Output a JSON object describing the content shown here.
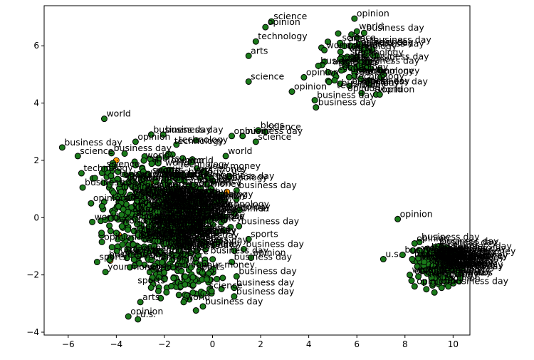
{
  "chart_data": {
    "type": "scatter",
    "title": "",
    "xlabel": "",
    "ylabel": "",
    "xlim": [
      -7,
      10.7
    ],
    "ylim": [
      -4.1,
      7.4
    ],
    "xticks": [
      -6,
      -4,
      -2,
      0,
      2,
      4,
      6,
      8,
      10
    ],
    "yticks": [
      -4,
      -2,
      0,
      2,
      4,
      6
    ],
    "grid": false,
    "legend": "none",
    "colors": {
      "point": "#1a7a1a",
      "point_edge": "#000000",
      "accent_point": "#ff9900",
      "label": "#000000"
    },
    "points": [
      {
        "x": 2.2,
        "y": 6.65,
        "label": "opinion"
      },
      {
        "x": 2.45,
        "y": 6.85,
        "label": "science"
      },
      {
        "x": 1.8,
        "y": 6.15,
        "label": "technology"
      },
      {
        "x": 1.5,
        "y": 5.65,
        "label": "arts"
      },
      {
        "x": 1.5,
        "y": 4.75,
        "label": "science"
      },
      {
        "x": 3.3,
        "y": 4.4,
        "label": "opinion"
      },
      {
        "x": 4.25,
        "y": 4.1,
        "label": "business day"
      },
      {
        "x": 4.3,
        "y": 3.85,
        "label": "business day"
      },
      {
        "x": 3.8,
        "y": 4.9,
        "label": "opinion"
      },
      {
        "x": 4.65,
        "y": 5.85,
        "label": "world"
      },
      {
        "x": 4.4,
        "y": 5.3,
        "label": "business day"
      },
      {
        "x": 5.3,
        "y": 6.1,
        "label": "science"
      },
      {
        "x": 5.9,
        "y": 6.95,
        "label": "opinion"
      },
      {
        "x": 6.0,
        "y": 6.5,
        "label": "world"
      },
      {
        "x": 6.3,
        "y": 6.45,
        "label": "business day"
      },
      {
        "x": 5.8,
        "y": 5.6,
        "label": "technology"
      },
      {
        "x": 6.1,
        "y": 5.3,
        "label": "business day"
      },
      {
        "x": 5.9,
        "y": 4.95,
        "label": "opinion"
      },
      {
        "x": 5.7,
        "y": 4.6,
        "label": "business day"
      },
      {
        "x": 6.2,
        "y": 4.35,
        "label": "u.s."
      },
      {
        "x": 6.8,
        "y": 4.3,
        "label": "world"
      },
      {
        "x": 6.95,
        "y": 4.3,
        "label": "opinion"
      },
      {
        "x": 6.3,
        "y": 5.9,
        "label": "business day"
      },
      {
        "x": 6.5,
        "y": 5.45,
        "label": "business day"
      },
      {
        "x": -4.5,
        "y": 3.45,
        "label": "world"
      },
      {
        "x": -6.25,
        "y": 2.45,
        "label": "business day"
      },
      {
        "x": -5.6,
        "y": 2.15,
        "label": "science"
      },
      {
        "x": -5.45,
        "y": 1.55,
        "label": "technology"
      },
      {
        "x": -5.4,
        "y": 1.05,
        "label": "business day"
      },
      {
        "x": -5.05,
        "y": 0.5,
        "label": "opinion"
      },
      {
        "x": -5.0,
        "y": -0.15,
        "label": "world"
      },
      {
        "x": -4.6,
        "y": -0.85,
        "label": "opinion"
      },
      {
        "x": -4.8,
        "y": -1.55,
        "label": "sports"
      },
      {
        "x": -4.45,
        "y": -1.9,
        "label": "your money"
      },
      {
        "x": -4.5,
        "y": 1.7,
        "label": "science"
      },
      {
        "x": -4.2,
        "y": 2.25,
        "label": "business day"
      },
      {
        "x": -3.95,
        "y": 1.35,
        "label": "technology"
      },
      {
        "x": -3.8,
        "y": 0.9,
        "label": "business day"
      },
      {
        "x": -2.55,
        "y": 2.9,
        "label": "business day"
      },
      {
        "x": -2.05,
        "y": 2.9,
        "label": "business day"
      },
      {
        "x": -3.2,
        "y": 2.65,
        "label": "opinion"
      },
      {
        "x": -1.5,
        "y": 2.55,
        "label": "technology"
      },
      {
        "x": 0.55,
        "y": 2.15,
        "label": "world"
      },
      {
        "x": 0.7,
        "y": 1.45,
        "label": "u.s."
      },
      {
        "x": 1.0,
        "y": 0.95,
        "label": "business day"
      },
      {
        "x": 0.9,
        "y": 0.15,
        "label": "opinion"
      },
      {
        "x": 1.1,
        "y": -0.3,
        "label": "business day"
      },
      {
        "x": 1.5,
        "y": -0.75,
        "label": "sports"
      },
      {
        "x": 1.3,
        "y": -1.1,
        "label": "business day"
      },
      {
        "x": 1.6,
        "y": -1.4,
        "label": "opinion"
      },
      {
        "x": 0.8,
        "y": -1.55,
        "label": "business day"
      },
      {
        "x": 1.0,
        "y": -2.05,
        "label": "business day"
      },
      {
        "x": 0.9,
        "y": -2.45,
        "label": "business day"
      },
      {
        "x": 0.9,
        "y": -2.75,
        "label": "business day"
      },
      {
        "x": -0.4,
        "y": -3.1,
        "label": "business day"
      },
      {
        "x": -1.2,
        "y": -2.95,
        "label": "world"
      },
      {
        "x": -3.1,
        "y": -3.55,
        "label": "u.s."
      },
      {
        "x": -3.5,
        "y": -3.45,
        "label": "opinion"
      },
      {
        "x": -3.0,
        "y": -2.95,
        "label": "arts"
      },
      {
        "x": 0.8,
        "y": 2.85,
        "label": "opinion"
      },
      {
        "x": 1.25,
        "y": 2.85,
        "label": "business day"
      },
      {
        "x": 1.9,
        "y": 3.05,
        "label": "blogs"
      },
      {
        "x": 2.2,
        "y": 3.0,
        "label": "science"
      },
      {
        "x": 1.8,
        "y": 2.65,
        "label": "science"
      },
      {
        "x": 7.7,
        "y": -0.05,
        "label": "opinion"
      },
      {
        "x": 7.1,
        "y": -1.45,
        "label": "u.s."
      },
      {
        "x": 7.9,
        "y": -1.3,
        "label": "business day"
      },
      {
        "x": 8.6,
        "y": -0.85,
        "label": "business day"
      },
      {
        "x": 8.4,
        "y": -0.9,
        "label": "opinion"
      },
      {
        "x": 9.4,
        "y": -1.0,
        "label": "business day"
      },
      {
        "x": 9.7,
        "y": -1.25,
        "label": "business day"
      },
      {
        "x": 10.3,
        "y": -1.35,
        "label": "your money"
      },
      {
        "x": 10.4,
        "y": -1.75,
        "label": "photos"
      },
      {
        "x": 10.3,
        "y": -2.1,
        "label": "photos"
      },
      {
        "x": 9.8,
        "y": -2.4,
        "label": "business day"
      },
      {
        "x": 8.4,
        "y": -2.4,
        "label": "opinion"
      },
      {
        "x": 8.2,
        "y": -2.0,
        "label": "world"
      },
      {
        "x": 8.3,
        "y": -1.45,
        "label": "business day"
      },
      {
        "x": 8.8,
        "y": -1.55,
        "label": "business day"
      },
      {
        "x": 9.1,
        "y": -2.1,
        "label": "business day"
      }
    ]
  }
}
